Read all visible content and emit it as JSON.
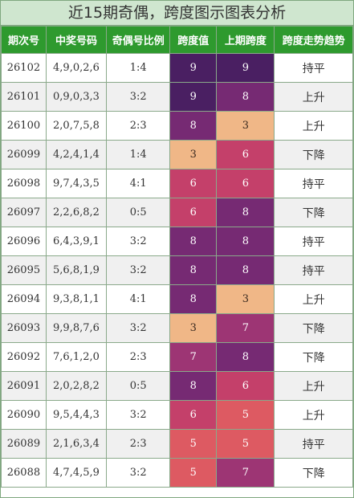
{
  "title": "近15期奇偶，跨度图示图表分析",
  "headers": [
    "期次号",
    "中奖号码",
    "奇偶号比例",
    "跨度值",
    "上期跨度",
    "跨度走势趋势"
  ],
  "colors": {
    "header_bg": "#2e9a2e",
    "title_bg": "#cfe6cf",
    "span_3": "#f0b787",
    "span_5": "#dd5a62",
    "span_6": "#c4406a",
    "span_7": "#9d3574",
    "span_8": "#762a73",
    "span_9": "#4a1f62"
  },
  "rows": [
    {
      "issue": "26102",
      "numbers": "4,9,0,2,6",
      "ratio": "1:4",
      "span": "9",
      "prev_span": "9",
      "trend": "持平"
    },
    {
      "issue": "26101",
      "numbers": "0,9,0,3,3",
      "ratio": "3:2",
      "span": "9",
      "prev_span": "8",
      "trend": "上升"
    },
    {
      "issue": "26100",
      "numbers": "2,0,7,5,8",
      "ratio": "2:3",
      "span": "8",
      "prev_span": "3",
      "trend": "上升"
    },
    {
      "issue": "26099",
      "numbers": "4,2,4,1,4",
      "ratio": "1:4",
      "span": "3",
      "prev_span": "6",
      "trend": "下降"
    },
    {
      "issue": "26098",
      "numbers": "9,7,4,3,5",
      "ratio": "4:1",
      "span": "6",
      "prev_span": "6",
      "trend": "持平"
    },
    {
      "issue": "26097",
      "numbers": "2,2,6,8,2",
      "ratio": "0:5",
      "span": "6",
      "prev_span": "8",
      "trend": "下降"
    },
    {
      "issue": "26096",
      "numbers": "6,4,3,9,1",
      "ratio": "3:2",
      "span": "8",
      "prev_span": "8",
      "trend": "持平"
    },
    {
      "issue": "26095",
      "numbers": "5,6,8,1,9",
      "ratio": "3:2",
      "span": "8",
      "prev_span": "8",
      "trend": "持平"
    },
    {
      "issue": "26094",
      "numbers": "9,3,8,1,1",
      "ratio": "4:1",
      "span": "8",
      "prev_span": "3",
      "trend": "上升"
    },
    {
      "issue": "26093",
      "numbers": "9,9,8,7,6",
      "ratio": "3:2",
      "span": "3",
      "prev_span": "7",
      "trend": "下降"
    },
    {
      "issue": "26092",
      "numbers": "7,6,1,2,0",
      "ratio": "2:3",
      "span": "7",
      "prev_span": "8",
      "trend": "下降"
    },
    {
      "issue": "26091",
      "numbers": "2,0,2,8,2",
      "ratio": "0:5",
      "span": "8",
      "prev_span": "6",
      "trend": "上升"
    },
    {
      "issue": "26090",
      "numbers": "9,5,4,4,3",
      "ratio": "3:2",
      "span": "6",
      "prev_span": "5",
      "trend": "上升"
    },
    {
      "issue": "26089",
      "numbers": "2,1,6,3,4",
      "ratio": "2:3",
      "span": "5",
      "prev_span": "5",
      "trend": "持平"
    },
    {
      "issue": "26088",
      "numbers": "4,7,4,5,9",
      "ratio": "3:2",
      "span": "5",
      "prev_span": "7",
      "trend": "下降"
    }
  ]
}
